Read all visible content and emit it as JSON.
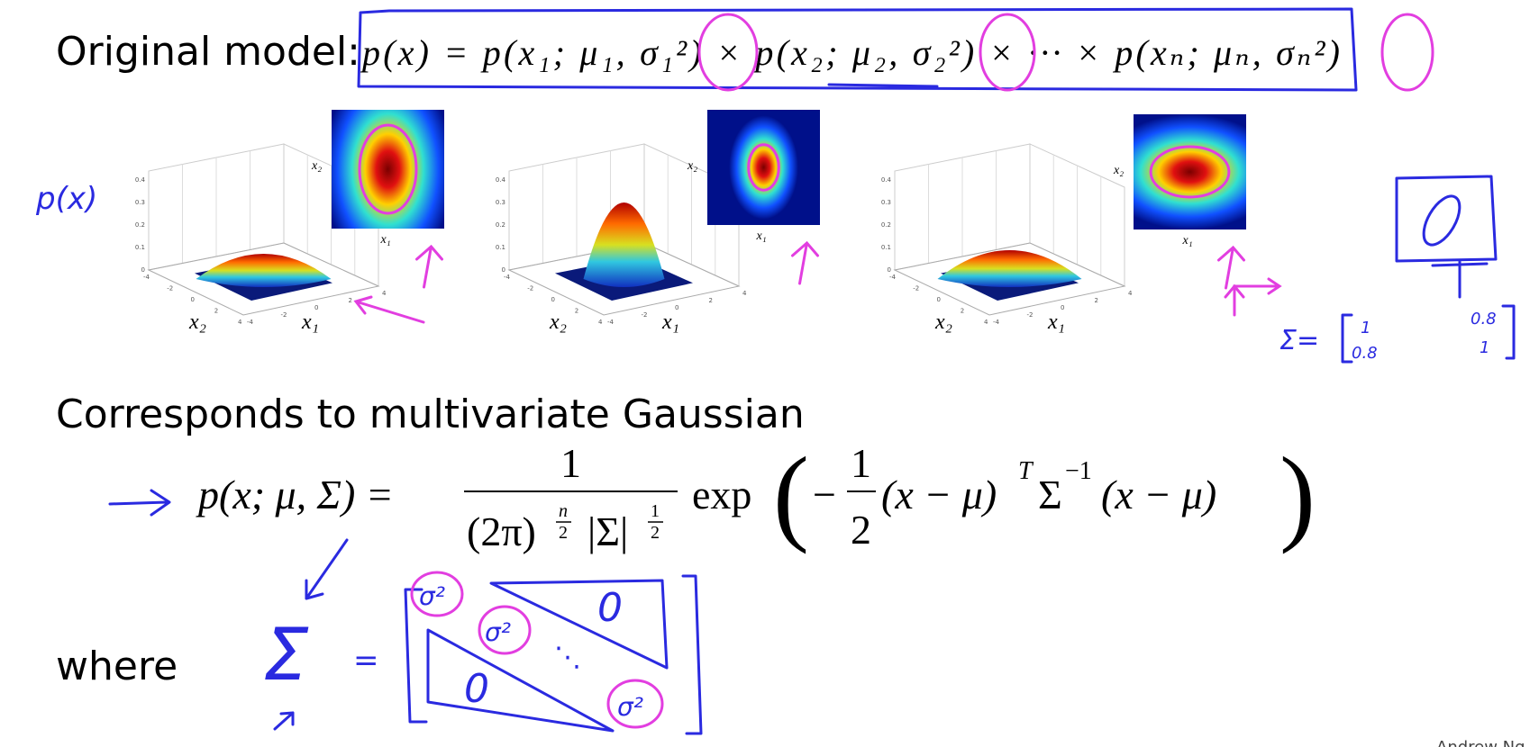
{
  "original_model": {
    "label": "Original model:",
    "formula": "p(x) = p(x₁; μ₁, σ₁²) × p(x₂; μ₂, σ₂²) × ··· × p(xₙ; μₙ, σₙ²)"
  },
  "plots": [
    {
      "x_label": "x₁",
      "y_label": "x₂",
      "inset_x_label": "x₁",
      "inset_y_label": "x₂",
      "z_ticks": [
        0,
        0.1,
        0.2,
        0.3,
        0.4
      ],
      "x_ticks": [
        -4,
        -2,
        0,
        2,
        4
      ],
      "y_ticks": [
        -4,
        -2,
        0,
        2,
        4
      ]
    },
    {
      "x_label": "x₁",
      "y_label": "x₂",
      "inset_x_label": "x₁",
      "inset_y_label": "x₂",
      "z_ticks": [
        0,
        0.1,
        0.2,
        0.3,
        0.4
      ],
      "x_ticks": [
        -4,
        -2,
        0,
        2,
        4
      ],
      "y_ticks": [
        -4,
        -2,
        0,
        2,
        4
      ]
    },
    {
      "x_label": "x₁",
      "y_label": "x₂",
      "inset_x_label": "x₁",
      "inset_y_label": "x₂",
      "z_ticks": [
        0,
        0.1,
        0.2,
        0.3,
        0.4
      ],
      "x_ticks": [
        -4,
        -2,
        0,
        2,
        4
      ],
      "y_ticks": [
        -4,
        -2,
        0,
        2,
        4
      ]
    }
  ],
  "multivariate": {
    "heading": "Corresponds to multivariate Gaussian",
    "lhs": "p(x; μ, Σ) =",
    "numerator": "1",
    "den_base": "(2π)",
    "den_exp_num": "n",
    "den_exp_den": "2",
    "den_det": "|Σ|",
    "det_exp_num": "1",
    "det_exp_den": "2",
    "exp": "exp",
    "open": "(",
    "minus": "−",
    "half_num": "1",
    "half_den": "2",
    "left_term": "(x − μ)",
    "transpose": "T",
    "sigma": "Σ",
    "inverse": "−1",
    "right_term": "(x − μ)",
    "close": ")"
  },
  "where": "where",
  "handwriting": {
    "p_x": "p(x)",
    "sigma_eq": "Σ=",
    "cov": [
      [
        "1",
        "0.8"
      ],
      [
        "0.8",
        "1"
      ]
    ],
    "sigma": "Σ",
    "equals": "=",
    "diag": [
      "σ²",
      "σ²",
      "σ²"
    ],
    "zeros": [
      "0",
      "0"
    ],
    "dots": "⋱"
  },
  "credit": "Andrew Ng"
}
